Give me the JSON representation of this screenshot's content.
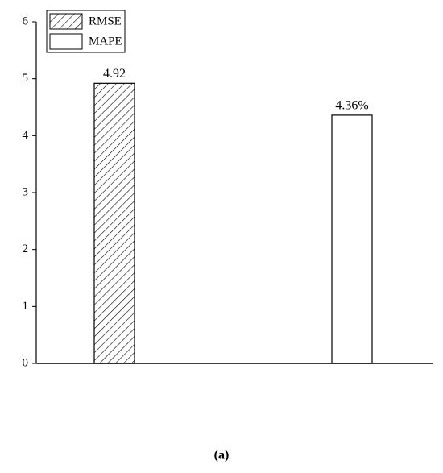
{
  "chart_data": {
    "type": "bar",
    "caption": "(a)",
    "categories": [
      null,
      null
    ],
    "series": [
      {
        "name": "RMSE",
        "color": "#000000",
        "pattern": "hatch",
        "values": [
          4.92,
          null
        ],
        "value_labels": [
          "4.92",
          null
        ]
      },
      {
        "name": "MAPE",
        "color": "#000000",
        "pattern": "none",
        "values": [
          null,
          4.36
        ],
        "value_labels": [
          null,
          "4.36%"
        ]
      }
    ],
    "ylim": [
      0,
      6
    ],
    "yticks": [
      0,
      1,
      2,
      3,
      4,
      5,
      6
    ],
    "grid": false,
    "legend": "upper left"
  }
}
